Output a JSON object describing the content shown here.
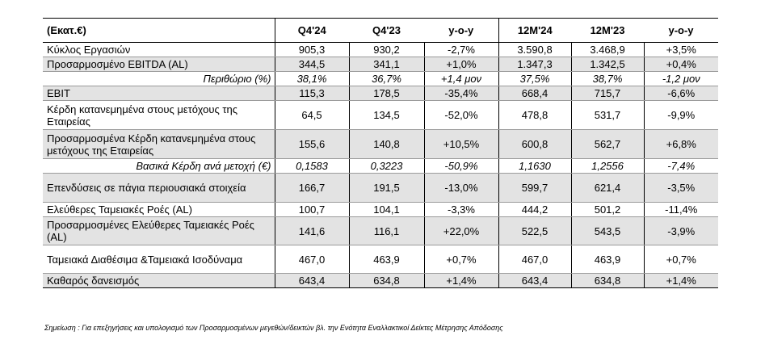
{
  "header": [
    "(Εκατ.€)",
    "Q4'24",
    "Q4'23",
    "y-o-y",
    "12M'24",
    "12M'23",
    "y-o-y"
  ],
  "rows": [
    {
      "label": "Κύκλος Εργασιών",
      "values": [
        "905,3",
        "930,2",
        "-2,7%",
        "3.590,8",
        "3.468,9",
        "+3,5%"
      ],
      "shade": false,
      "italic": false,
      "height": "h1"
    },
    {
      "label": "Προσαρμοσμένο EBITDA (AL)",
      "values": [
        "344,5",
        "341,1",
        "+1,0%",
        "1.347,3",
        "1.342,5",
        "+0,4%"
      ],
      "shade": true,
      "italic": false,
      "height": "h1"
    },
    {
      "label": "Περιθώριο (%)",
      "values": [
        "38,1%",
        "36,7%",
        "+1,4 μον",
        "37,5%",
        "38,7%",
        "-1,2 μον"
      ],
      "shade": false,
      "italic": true,
      "height": "h1"
    },
    {
      "label": "EBIT",
      "values": [
        "115,3",
        "178,5",
        "-35,4%",
        "668,4",
        "715,7",
        "-6,6%"
      ],
      "shade": true,
      "italic": false,
      "height": "h1"
    },
    {
      "label": "Κέρδη κατανεμημένα στους μετόχους της Εταιρείας",
      "values": [
        "64,5",
        "134,5",
        "-52,0%",
        "478,8",
        "531,7",
        "-9,9%"
      ],
      "shade": false,
      "italic": false,
      "height": "h2"
    },
    {
      "label": "Προσαρμοσμένα Κέρδη κατανεμημένα στους μετόχους της Εταιρείας",
      "values": [
        "155,6",
        "140,8",
        "+10,5%",
        "600,8",
        "562,7",
        "+6,8%"
      ],
      "shade": true,
      "italic": false,
      "height": "h2"
    },
    {
      "label": "Βασικά Κέρδη ανά μετοχή (€)",
      "values": [
        "0,1583",
        "0,3223",
        "-50,9%",
        "1,1630",
        "1,2556",
        "-7,4%"
      ],
      "shade": false,
      "italic": true,
      "height": "h1"
    },
    {
      "label": "Επενδύσεις σε πάγια περιουσιακά στοιχεία",
      "values": [
        "166,7",
        "191,5",
        "-13,0%",
        "599,7",
        "621,4",
        "-3,5%"
      ],
      "shade": true,
      "italic": false,
      "height": "h2"
    },
    {
      "label": "Ελεύθερες Ταμειακές Ροές (AL)",
      "values": [
        "100,7",
        "104,1",
        "-3,3%",
        "444,2",
        "501,2",
        "-11,4%"
      ],
      "shade": false,
      "italic": false,
      "height": "h1"
    },
    {
      "label": "Προσαρμοσμένες Ελεύθερες Ταμειακές Ροές (AL)",
      "values": [
        "141,6",
        "116,1",
        "+22,0%",
        "522,5",
        "543,5",
        "-3,9%"
      ],
      "shade": true,
      "italic": false,
      "height": "h3"
    },
    {
      "label": "Ταμειακά Διαθέσιμα &Ταμειακά Ισοδύναμα",
      "values": [
        "467,0",
        "463,9",
        "+0,7%",
        "467,0",
        "463,9",
        "+0,7%"
      ],
      "shade": false,
      "italic": false,
      "height": "h3"
    },
    {
      "label": "Καθαρός δανεισμός",
      "values": [
        "643,4",
        "634,8",
        "+1,4%",
        "643,4",
        "634,8",
        "+1,4%"
      ],
      "shade": true,
      "italic": false,
      "height": "h1"
    }
  ],
  "footnote": "Σημείωση : Για επεξηγήσεις και υπολογισμό των Προσαρμοσμένων μεγεθών/δεικτών βλ. την Ενότητα Εναλλακτικοί Δείκτες Μέτρησης Απόδοσης"
}
